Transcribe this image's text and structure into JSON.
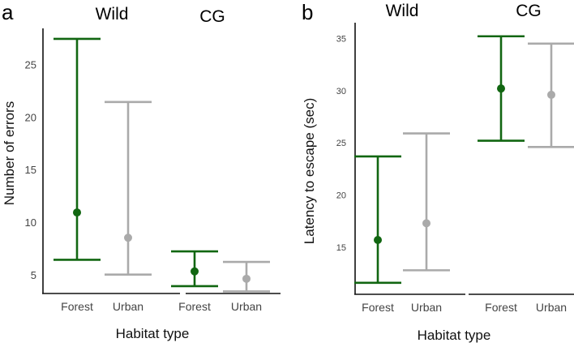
{
  "colors": {
    "forest": "#116611",
    "urban": "#aaaaaa"
  },
  "chart_data": [
    {
      "panel": "a",
      "type": "errorbar",
      "ylabel": "Number of errors",
      "xlabel": "Habitat type",
      "ylim": [
        3.3,
        28.5
      ],
      "yticks": [
        5,
        10,
        15,
        20,
        25
      ],
      "groups": [
        {
          "name": "Wild",
          "categories": [
            {
              "label": "Forest",
              "mean": 11.0,
              "low": 6.5,
              "high": 27.5,
              "color": "#116611"
            },
            {
              "label": "Urban",
              "mean": 8.6,
              "low": 5.1,
              "high": 21.5,
              "color": "#aaaaaa"
            }
          ]
        },
        {
          "name": "CG",
          "categories": [
            {
              "label": "Forest",
              "mean": 5.4,
              "low": 4.0,
              "high": 7.3,
              "color": "#116611"
            },
            {
              "label": "Urban",
              "mean": 4.7,
              "low": 3.5,
              "high": 6.3,
              "color": "#aaaaaa"
            }
          ]
        }
      ]
    },
    {
      "panel": "b",
      "type": "errorbar",
      "ylabel": "Latency to escape (sec)",
      "xlabel": "Habitat type",
      "ylim": [
        10.5,
        36.5
      ],
      "yticks": [
        15,
        20,
        25,
        30,
        35
      ],
      "groups": [
        {
          "name": "Wild",
          "categories": [
            {
              "label": "Forest",
              "mean": 15.7,
              "low": 11.6,
              "high": 23.7,
              "color": "#116611"
            },
            {
              "label": "Urban",
              "mean": 17.3,
              "low": 12.8,
              "high": 25.9,
              "color": "#aaaaaa"
            }
          ]
        },
        {
          "name": "CG",
          "categories": [
            {
              "label": "Forest",
              "mean": 30.2,
              "low": 25.2,
              "high": 35.2,
              "color": "#116611"
            },
            {
              "label": "Urban",
              "mean": 29.6,
              "low": 24.6,
              "high": 34.5,
              "color": "#aaaaaa"
            }
          ]
        }
      ]
    }
  ]
}
